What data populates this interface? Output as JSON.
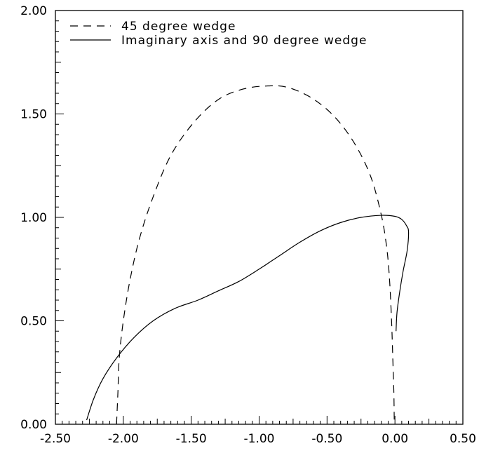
{
  "chart_data": {
    "type": "line",
    "title": "",
    "xlabel": "",
    "ylabel": "",
    "xlim": [
      -2.5,
      0.5
    ],
    "ylim": [
      0.0,
      2.0
    ],
    "x_ticks": [
      "-2.50",
      "-2.00",
      "-1.50",
      "-1.00",
      "-0.50",
      "0.00",
      "0.50"
    ],
    "y_ticks": [
      "0.00",
      "0.50",
      "1.00",
      "1.50",
      "2.00"
    ],
    "grid": false,
    "legend_position": "top-left",
    "series": [
      {
        "name": "45 degree wedge",
        "line_style": "dashed",
        "color": "#000000",
        "points": [
          [
            -2.05,
            0.0
          ],
          [
            -2.04,
            0.15
          ],
          [
            -2.03,
            0.32
          ],
          [
            -2.0,
            0.5
          ],
          [
            -1.95,
            0.7
          ],
          [
            -1.88,
            0.9
          ],
          [
            -1.78,
            1.1
          ],
          [
            -1.65,
            1.3
          ],
          [
            -1.48,
            1.46
          ],
          [
            -1.3,
            1.57
          ],
          [
            -1.12,
            1.62
          ],
          [
            -0.95,
            1.635
          ],
          [
            -0.8,
            1.63
          ],
          [
            -0.62,
            1.58
          ],
          [
            -0.45,
            1.49
          ],
          [
            -0.3,
            1.36
          ],
          [
            -0.18,
            1.2
          ],
          [
            -0.1,
            1.01
          ],
          [
            -0.06,
            0.85
          ],
          [
            -0.04,
            0.7
          ],
          [
            -0.025,
            0.5
          ],
          [
            -0.015,
            0.3
          ],
          [
            -0.008,
            0.15
          ],
          [
            -0.005,
            0.0
          ]
        ]
      },
      {
        "name": "Imaginary axis and 90 degree wedge",
        "line_style": "solid",
        "color": "#000000",
        "points": [
          [
            -2.27,
            0.02
          ],
          [
            -2.22,
            0.12
          ],
          [
            -2.15,
            0.22
          ],
          [
            -2.05,
            0.32
          ],
          [
            -1.92,
            0.42
          ],
          [
            -1.78,
            0.5
          ],
          [
            -1.62,
            0.56
          ],
          [
            -1.45,
            0.6
          ],
          [
            -1.3,
            0.645
          ],
          [
            -1.15,
            0.69
          ],
          [
            -1.0,
            0.75
          ],
          [
            -0.85,
            0.815
          ],
          [
            -0.7,
            0.88
          ],
          [
            -0.55,
            0.935
          ],
          [
            -0.4,
            0.975
          ],
          [
            -0.25,
            1.0
          ],
          [
            -0.1,
            1.01
          ],
          [
            0.0,
            1.005
          ],
          [
            0.05,
            0.99
          ],
          [
            0.085,
            0.96
          ],
          [
            0.1,
            0.93
          ],
          [
            0.09,
            0.84
          ],
          [
            0.06,
            0.74
          ],
          [
            0.035,
            0.64
          ],
          [
            0.015,
            0.54
          ],
          [
            0.008,
            0.45
          ]
        ]
      }
    ]
  }
}
